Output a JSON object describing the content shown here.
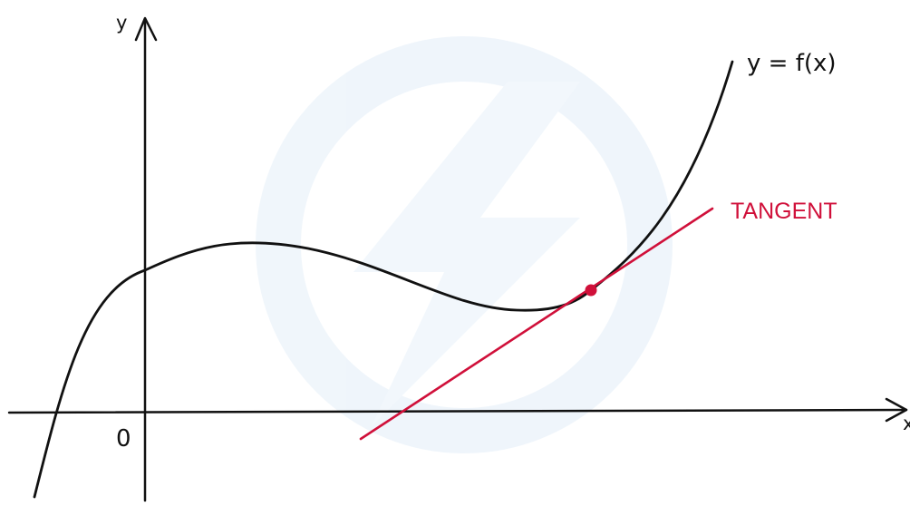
{
  "diagram": {
    "axis_y_label": "y",
    "axis_x_label": "x",
    "origin_label": "0",
    "curve_label": "y = f(x)",
    "tangent_label": "TANGENT"
  },
  "colors": {
    "ink": "#111111",
    "tangent": "#d0103a",
    "watermark": "#eef5fb"
  }
}
